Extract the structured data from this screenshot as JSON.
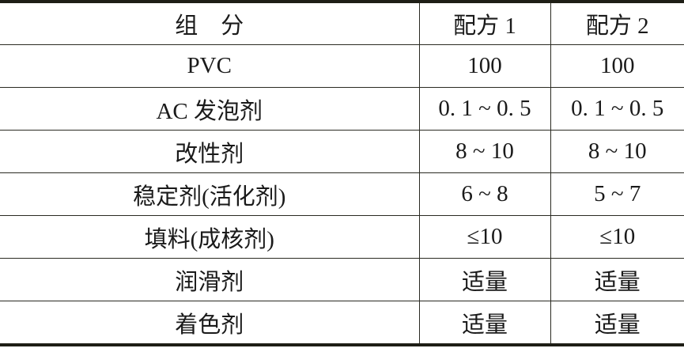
{
  "table": {
    "headers": [
      "组　分",
      "配方 1",
      "配方 2"
    ],
    "rows": [
      [
        "PVC",
        "100",
        "100"
      ],
      [
        "AC 发泡剂",
        "0. 1 ~ 0. 5",
        "0. 1 ~ 0. 5"
      ],
      [
        "改性剂",
        "8 ~ 10",
        "8 ~ 10"
      ],
      [
        "稳定剂(活化剂)",
        "6 ~ 8",
        "5 ~ 7"
      ],
      [
        "填料(成核剂)",
        "≤10",
        "≤10"
      ],
      [
        "润滑剂",
        "适量",
        "适量"
      ],
      [
        "着色剂",
        "适量",
        "适量"
      ]
    ]
  }
}
